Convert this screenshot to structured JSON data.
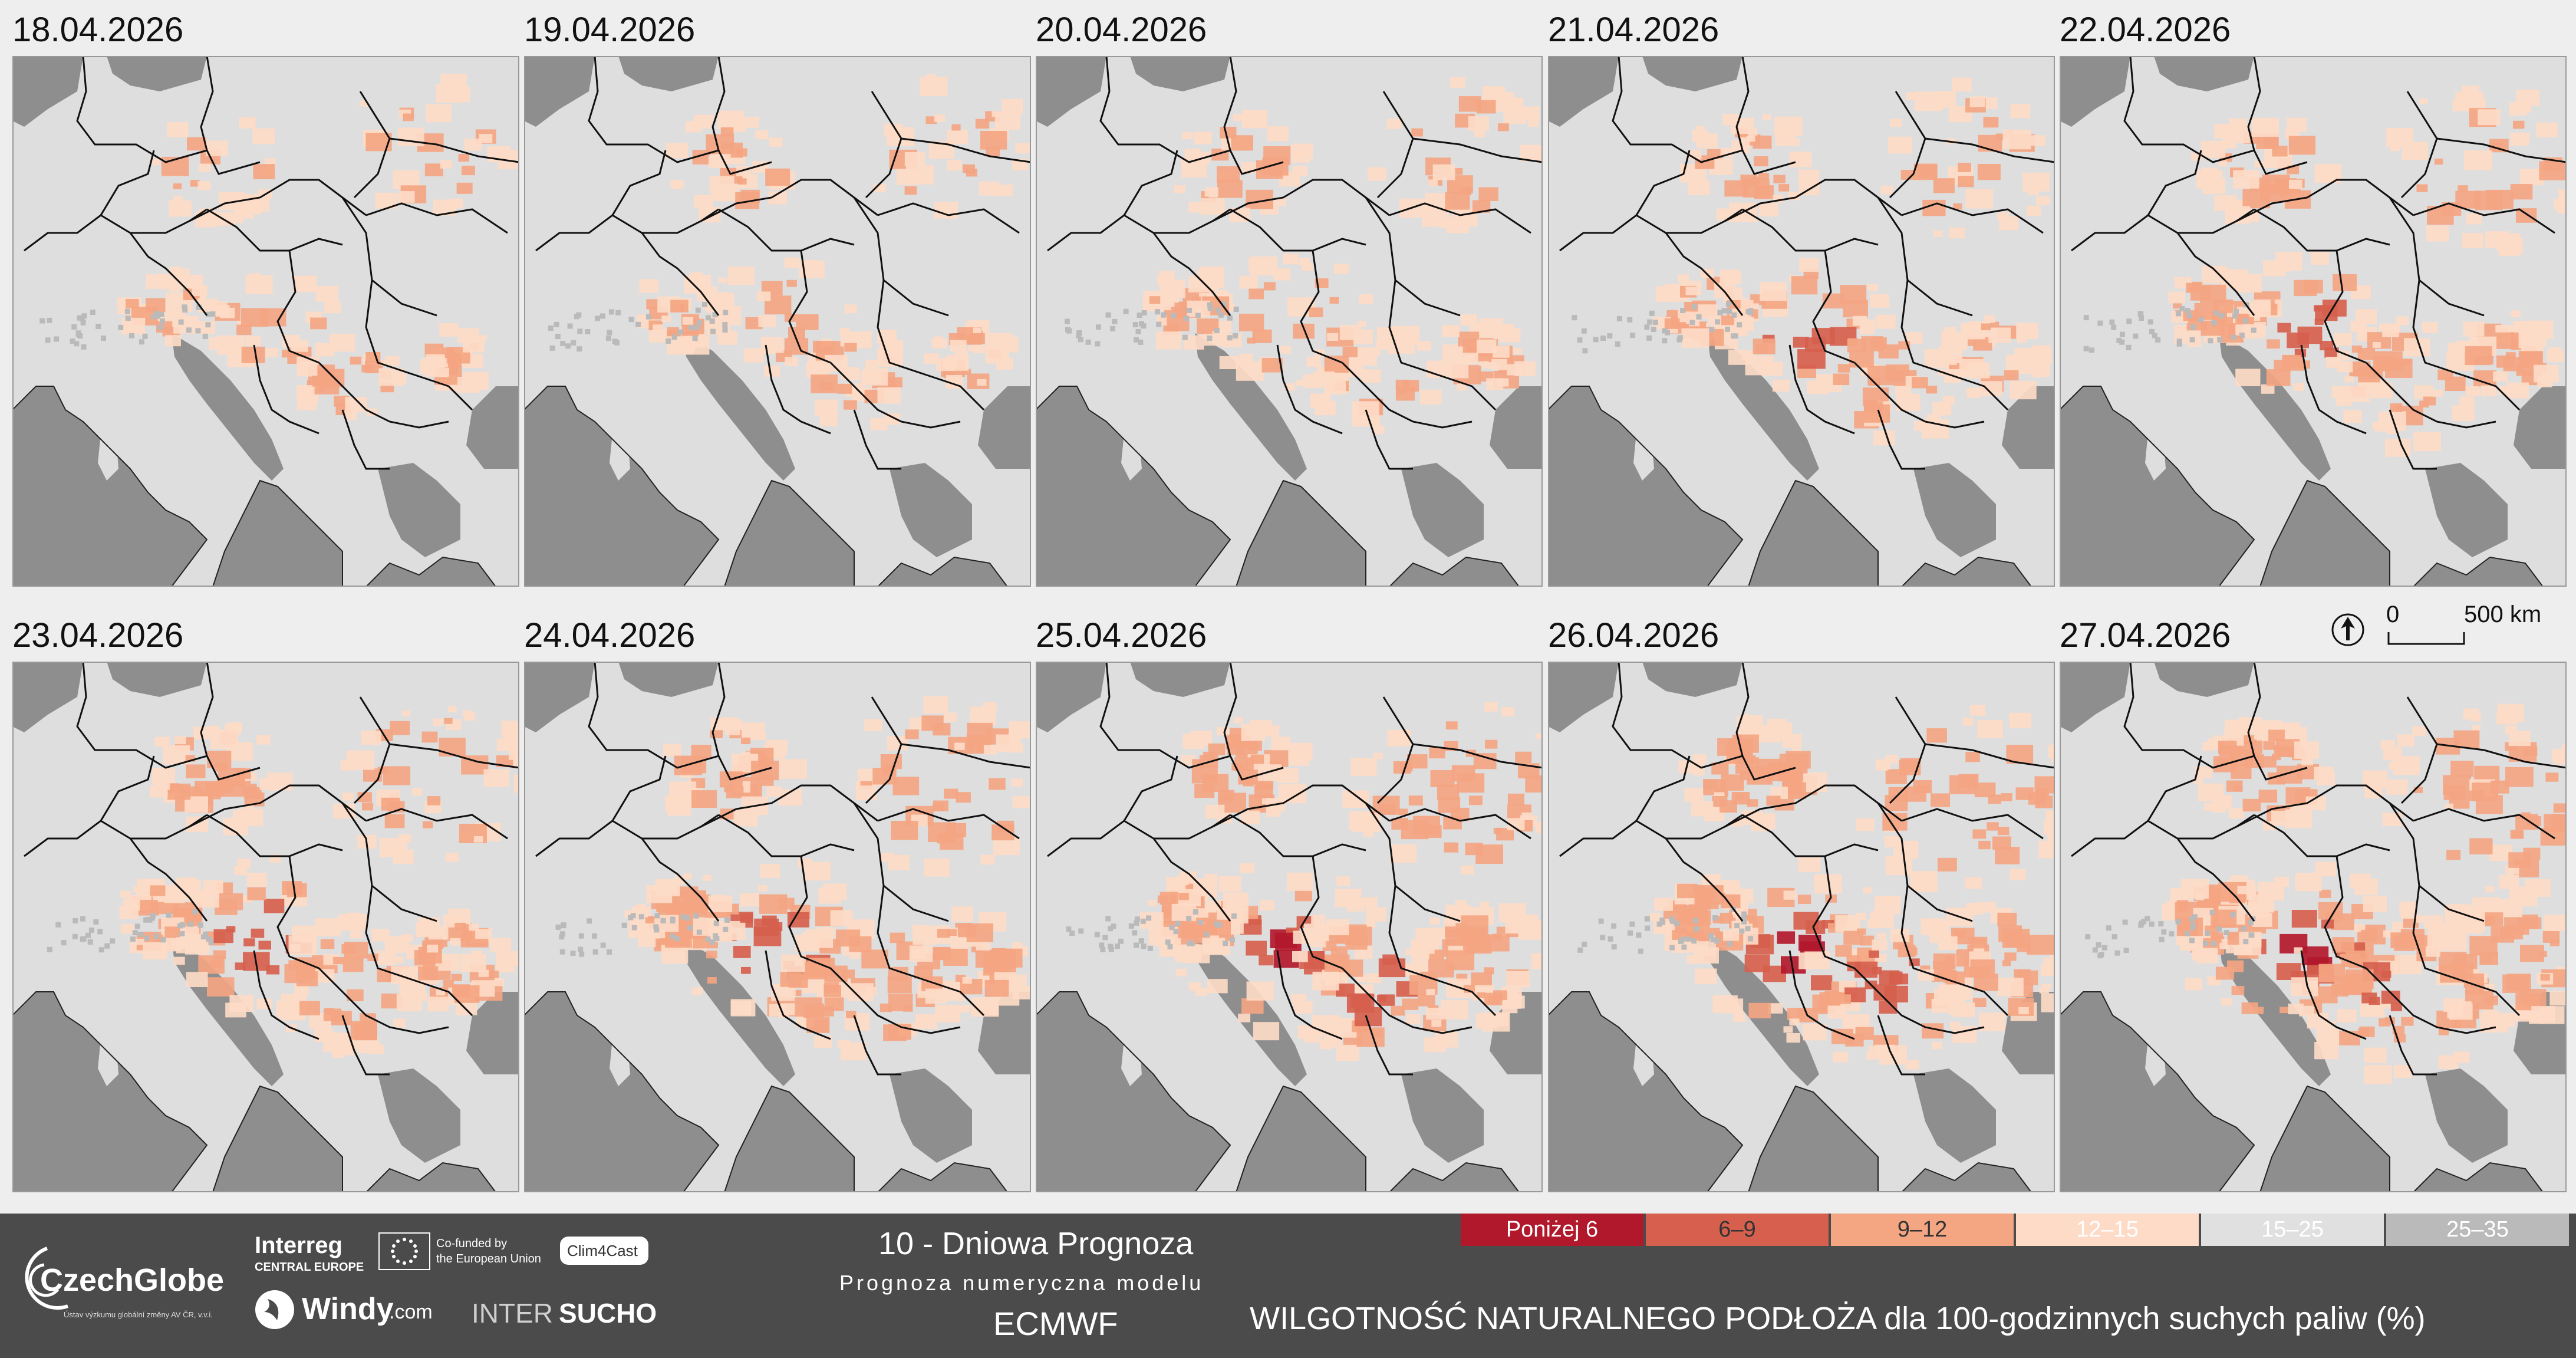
{
  "panels": [
    {
      "date": "18.04.2026"
    },
    {
      "date": "19.04.2026"
    },
    {
      "date": "20.04.2026"
    },
    {
      "date": "21.04.2026"
    },
    {
      "date": "22.04.2026"
    },
    {
      "date": "23.04.2026"
    },
    {
      "date": "24.04.2026"
    },
    {
      "date": "25.04.2026"
    },
    {
      "date": "26.04.2026"
    },
    {
      "date": "27.04.2026"
    }
  ],
  "scale": {
    "zero": "0",
    "distance": "500 km"
  },
  "header": {
    "title": "10 - Dniowa Prognoza",
    "subtitle": "Prognoza numeryczna modelu",
    "model": "ECMWF"
  },
  "variable_title": "WILGOTNOŚĆ NATURALNEGO PODŁOŻA dla 100-godzinnych suchych paliw (%)",
  "legend": [
    {
      "label": "Poniżej 6",
      "color": "#b2182b"
    },
    {
      "label": "6–9",
      "color": "#d6604d"
    },
    {
      "label": "9–12",
      "color": "#f4a582"
    },
    {
      "label": "12–15",
      "color": "#fddbc7"
    },
    {
      "label": "15–25",
      "color": "#e0e0e0"
    },
    {
      "label": "25–35",
      "color": "#bababa"
    }
  ],
  "logos": {
    "czechglobe": "CzechGlobe",
    "czechglobe_sub": "Ústav výzkumu globální změny AV ČR, v.v.i.",
    "interreg": "Interreg",
    "interreg_sub": "CENTRAL EUROPE",
    "eu_line1": "Co-funded by",
    "eu_line2": "the European Union",
    "clim4cast": "Clim4Cast",
    "windy": "Windy",
    "windy_suffix": ".com",
    "intersucho_a": "INTER",
    "intersucho_b": "SUCHO"
  },
  "colors": {
    "sea": "#8e8e8e",
    "land": "#dedede",
    "border": "#111111",
    "footer": "#4b4b4b"
  }
}
